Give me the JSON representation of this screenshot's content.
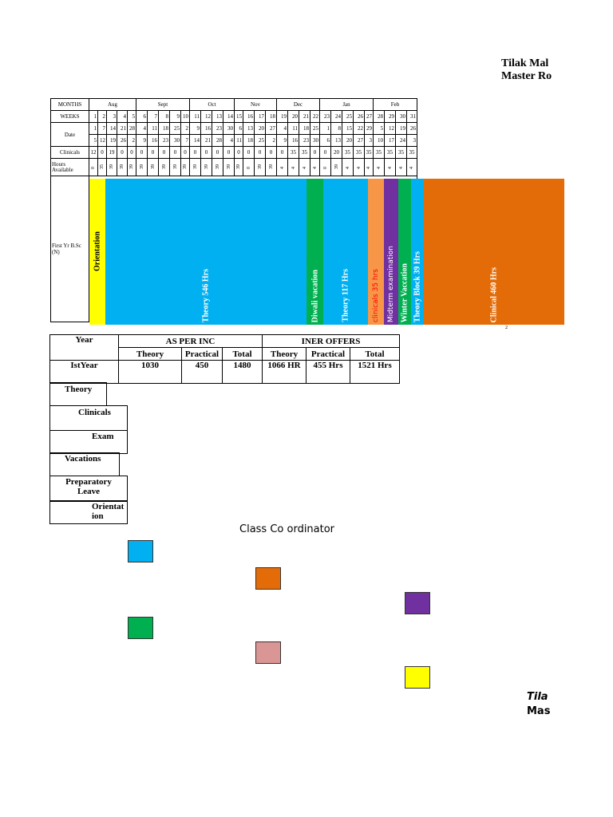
{
  "header": {
    "title_line1": "Tilak Mal",
    "title_line2": "Master Ro"
  },
  "footer": {
    "line1": "Tila",
    "line2": "Mas"
  },
  "grid": {
    "row_labels": {
      "months": "MONTHS",
      "weeks": "WEEKS",
      "date": "Date",
      "clinicals": "Clinicals",
      "hours": "Hours Available",
      "program": "First Yr B.Sc (N)"
    },
    "months": [
      "Aug",
      "Sept",
      "Oct",
      "Nov",
      "Dec",
      "Jan",
      "Feb"
    ],
    "weeks": [
      "1",
      "2",
      "3",
      "4",
      "5",
      "6",
      "7",
      "8",
      "9",
      "10",
      "11",
      "12",
      "13",
      "14",
      "15",
      "16",
      "17",
      "18",
      "19",
      "20",
      "21",
      "22",
      "23",
      "24",
      "25",
      "26",
      "27",
      "28",
      "29",
      "30",
      "31"
    ],
    "date1": [
      "1",
      "7",
      "14",
      "21",
      "28",
      "4",
      "11",
      "18",
      "25",
      "2",
      "9",
      "16",
      "23",
      "30",
      "6",
      "13",
      "20",
      "27",
      "4",
      "11",
      "18",
      "25",
      "1",
      "8",
      "15",
      "22",
      "29",
      "5",
      "12",
      "19",
      "26"
    ],
    "date2": [
      "5",
      "12",
      "19",
      "26",
      "2",
      "9",
      "16",
      "23",
      "30",
      "7",
      "14",
      "21",
      "28",
      "4",
      "11",
      "18",
      "25",
      "2",
      "9",
      "16",
      "23",
      "30",
      "6",
      "13",
      "20",
      "27",
      "3",
      "10",
      "17",
      "24",
      "3"
    ],
    "clinicals": [
      "12",
      "0",
      "19",
      "0",
      "0",
      "0",
      "0",
      "0",
      "0",
      "0",
      "0",
      "0",
      "0",
      "0",
      "0",
      "0",
      "0",
      "0",
      "0",
      "35",
      "35",
      "0",
      "0",
      "20",
      "35",
      "35",
      "35",
      "35",
      "35",
      "35",
      "35"
    ],
    "hours": [
      "0",
      "35",
      "39",
      "39",
      "39",
      "39",
      "39",
      "39",
      "39",
      "39",
      "39",
      "39",
      "39",
      "39",
      "39",
      "0",
      "39",
      "39",
      "4",
      "4",
      "4",
      "4",
      "0",
      "39",
      "4",
      "4",
      "4",
      "4",
      "4",
      "4",
      "4"
    ],
    "footnote": "2"
  },
  "bands": [
    {
      "label": "Orientation",
      "color": "#FFFF00",
      "text_color": "#000000"
    },
    {
      "label": "Theory 546 Hrs",
      "color": "#00B0F0",
      "text_color": "#ffffff"
    },
    {
      "label": "Diwali vacation",
      "color": "#00B050",
      "text_color": "#ffffff"
    },
    {
      "label": "Theory 117 Hrs",
      "color": "#00B0F0",
      "text_color": "#ffffff"
    },
    {
      "label": "clinicals 35 hrs",
      "color": "#F79646",
      "text_color": "#FF0000"
    },
    {
      "label": "Midterm examination",
      "color": "#7030A0",
      "text_color": "#ffffff"
    },
    {
      "label": "Winter Vaccation",
      "color": "#00B050",
      "text_color": "#ffffff"
    },
    {
      "label": "Theory Block 39 Hrs",
      "color": "#00B0F0",
      "text_color": "#ffffff"
    },
    {
      "label": "Clinical 460 Hrs",
      "color": "#E36C09",
      "text_color": "#ffffff"
    }
  ],
  "summary": {
    "year_label": "Year",
    "inc_label": "AS PER INC",
    "iner_label": "INER OFFERS",
    "theory": "Theory",
    "practical": "Practical",
    "total": "Total",
    "row_label": "IstYear",
    "inc": [
      "1030",
      "450",
      "1480"
    ],
    "iner": [
      "1066 HR",
      "455 Hrs",
      "1521 Hrs"
    ]
  },
  "categories": [
    "Theory",
    "Clinicals",
    "Exam",
    "Vacations",
    "Preparatory Leave",
    "Orientation"
  ],
  "coordinator": "Class Co ordinator",
  "swatches": [
    "#00B0F0",
    "#E36C09",
    "#7030A0",
    "#00B050",
    "#D99694",
    "#FFFF00"
  ]
}
